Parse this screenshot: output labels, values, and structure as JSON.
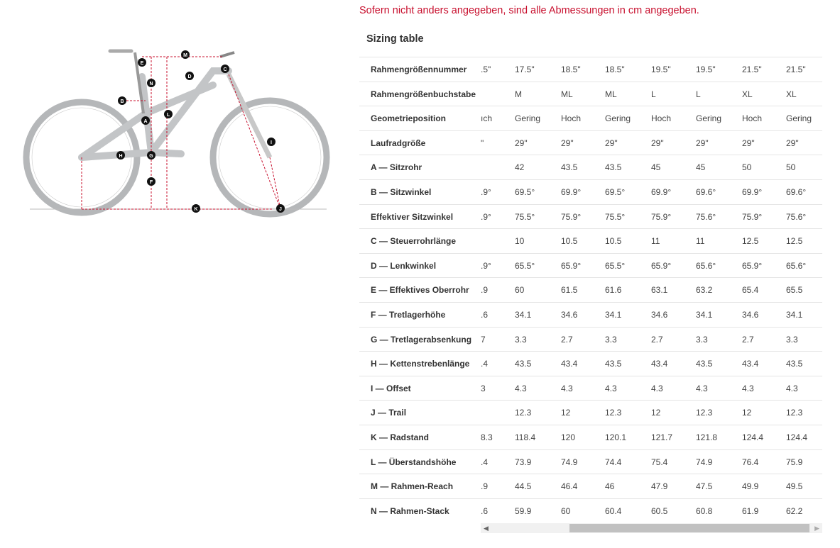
{
  "note": "Sofern nicht anders angegeben, sind alle Abmessungen in cm angegeben.",
  "title": "Sizing table",
  "accent": "#c8102e",
  "diagram_markers": [
    "M",
    "E",
    "C",
    "D",
    "N",
    "B",
    "A",
    "L",
    "G",
    "H",
    "F",
    "I",
    "K",
    "J"
  ],
  "rows": [
    {
      "label": "Rahmengrößennummer",
      "partial": ".5\"",
      "values": [
        "17.5\"",
        "18.5\"",
        "18.5\"",
        "19.5\"",
        "19.5\"",
        "21.5\"",
        "21.5\""
      ]
    },
    {
      "label": "Rahmengrößenbuchstabe",
      "partial": "",
      "values": [
        "M",
        "ML",
        "ML",
        "L",
        "L",
        "XL",
        "XL"
      ]
    },
    {
      "label": "Geometrieposition",
      "partial": "ıch",
      "values": [
        "Gering",
        "Hoch",
        "Gering",
        "Hoch",
        "Gering",
        "Hoch",
        "Gering"
      ]
    },
    {
      "label": "Laufradgröße",
      "partial": "\"",
      "values": [
        "29\"",
        "29\"",
        "29\"",
        "29\"",
        "29\"",
        "29\"",
        "29\""
      ]
    },
    {
      "label": "A — Sitzrohr",
      "partial": "",
      "values": [
        "42",
        "43.5",
        "43.5",
        "45",
        "45",
        "50",
        "50"
      ]
    },
    {
      "label": "B — Sitzwinkel",
      "partial": ".9°",
      "values": [
        "69.5°",
        "69.9°",
        "69.5°",
        "69.9°",
        "69.6°",
        "69.9°",
        "69.6°"
      ]
    },
    {
      "label": "Effektiver Sitzwinkel",
      "partial": ".9°",
      "values": [
        "75.5°",
        "75.9°",
        "75.5°",
        "75.9°",
        "75.6°",
        "75.9°",
        "75.6°"
      ]
    },
    {
      "label": "C — Steuerrohrlänge",
      "partial": "",
      "values": [
        "10",
        "10.5",
        "10.5",
        "11",
        "11",
        "12.5",
        "12.5"
      ]
    },
    {
      "label": "D — Lenkwinkel",
      "partial": ".9°",
      "values": [
        "65.5°",
        "65.9°",
        "65.5°",
        "65.9°",
        "65.6°",
        "65.9°",
        "65.6°"
      ]
    },
    {
      "label": "E — Effektives Oberrohr",
      "partial": ".9",
      "values": [
        "60",
        "61.5",
        "61.6",
        "63.1",
        "63.2",
        "65.4",
        "65.5"
      ]
    },
    {
      "label": "F — Tretlagerhöhe",
      "partial": ".6",
      "values": [
        "34.1",
        "34.6",
        "34.1",
        "34.6",
        "34.1",
        "34.6",
        "34.1"
      ]
    },
    {
      "label": "G — Tretlagerabsenkung",
      "partial": "7",
      "values": [
        "3.3",
        "2.7",
        "3.3",
        "2.7",
        "3.3",
        "2.7",
        "3.3"
      ]
    },
    {
      "label": "H — Kettenstrebenlänge",
      "partial": ".4",
      "values": [
        "43.5",
        "43.4",
        "43.5",
        "43.4",
        "43.5",
        "43.4",
        "43.5"
      ]
    },
    {
      "label": "I — Offset",
      "partial": "3",
      "values": [
        "4.3",
        "4.3",
        "4.3",
        "4.3",
        "4.3",
        "4.3",
        "4.3"
      ]
    },
    {
      "label": "J — Trail",
      "partial": "",
      "values": [
        "12.3",
        "12",
        "12.3",
        "12",
        "12.3",
        "12",
        "12.3"
      ]
    },
    {
      "label": "K — Radstand",
      "partial": "8.3",
      "values": [
        "118.4",
        "120",
        "120.1",
        "121.7",
        "121.8",
        "124.4",
        "124.4"
      ]
    },
    {
      "label": "L — Überstandshöhe",
      "partial": ".4",
      "values": [
        "73.9",
        "74.9",
        "74.4",
        "75.4",
        "74.9",
        "76.4",
        "75.9"
      ]
    },
    {
      "label": "M — Rahmen-Reach",
      "partial": ".9",
      "values": [
        "44.5",
        "46.4",
        "46",
        "47.9",
        "47.5",
        "49.9",
        "49.5"
      ]
    },
    {
      "label": "N — Rahmen-Stack",
      "partial": ".6",
      "values": [
        "59.9",
        "60",
        "60.4",
        "60.5",
        "60.8",
        "61.9",
        "62.2"
      ]
    }
  ]
}
